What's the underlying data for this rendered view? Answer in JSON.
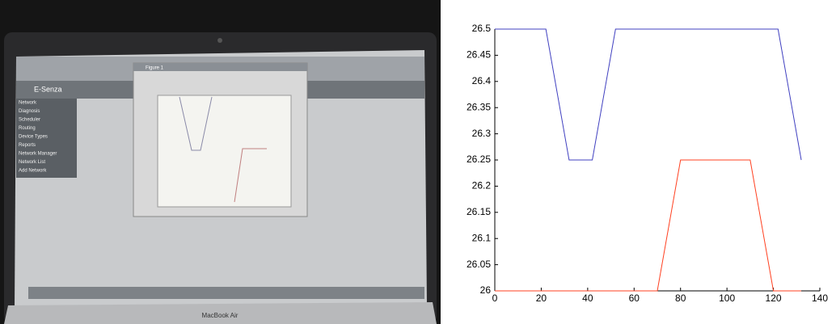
{
  "screenshot": {
    "app_title": "E-Senza",
    "window_title": "Figure 1",
    "menu": [
      "Network",
      "Diagnosis",
      "Scheduler",
      "Routing",
      "Device Types",
      "Reports",
      "Network Manager",
      "Network List",
      "Add Network"
    ],
    "laptop_label": "MacBook Air"
  },
  "chart_data": {
    "type": "line",
    "x": [
      0,
      22,
      32,
      42,
      52,
      70,
      80,
      110,
      120,
      122,
      132
    ],
    "series": [
      {
        "color": "#4040c0",
        "values": [
          26.5,
          26.5,
          26.25,
          26.25,
          26.5,
          26.5,
          26.5,
          26.5,
          26.5,
          26.5,
          26.25
        ]
      },
      {
        "color": "#ff4020",
        "values": [
          26,
          26,
          26,
          26,
          26,
          26,
          26.25,
          26.25,
          26,
          26,
          26
        ]
      }
    ],
    "xlim": [
      0,
      140
    ],
    "xticks": [
      0,
      20,
      40,
      60,
      80,
      100,
      120,
      140
    ],
    "ylim": [
      26,
      26.5
    ],
    "yticks": [
      26,
      26.05,
      26.1,
      26.15,
      26.2,
      26.25,
      26.3,
      26.35,
      26.4,
      26.45,
      26.5
    ]
  }
}
